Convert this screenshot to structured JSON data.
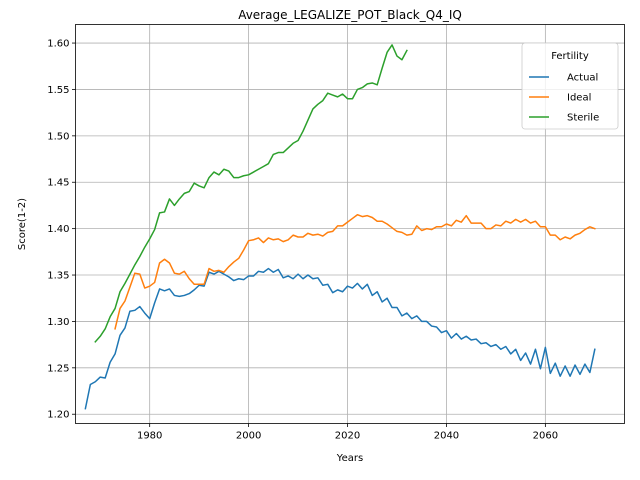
{
  "chart_data": {
    "type": "line",
    "title": "Average_LEGALIZE_POT_Black_Q4_IQ",
    "xlabel": "Years",
    "ylabel": "Score(1-2)",
    "xlim": [
      1965,
      2076
    ],
    "ylim": [
      1.19,
      1.62
    ],
    "xticks": [
      1980,
      2000,
      2020,
      2040,
      2060
    ],
    "yticks": [
      1.2,
      1.25,
      1.3,
      1.35,
      1.4,
      1.45,
      1.5,
      1.55,
      1.6
    ],
    "xtick_labels": [
      "1980",
      "2000",
      "2020",
      "2040",
      "2060"
    ],
    "ytick_labels": [
      "1.20",
      "1.25",
      "1.30",
      "1.35",
      "1.40",
      "1.45",
      "1.50",
      "1.55",
      "1.60"
    ],
    "grid": true,
    "legend": {
      "title": "Fertility",
      "position": "top-right"
    },
    "series": [
      {
        "name": "Actual",
        "color": "#1f77b4",
        "x": [
          1967,
          1968,
          1969,
          1970,
          1971,
          1972,
          1973,
          1974,
          1975,
          1976,
          1977,
          1978,
          1979,
          1980,
          1981,
          1982,
          1983,
          1984,
          1985,
          1986,
          1987,
          1988,
          1989,
          1990,
          1991,
          1992,
          1993,
          1994,
          1995,
          1996,
          1997,
          1998,
          1999,
          2000,
          2001,
          2002,
          2003,
          2004,
          2005,
          2006,
          2007,
          2008,
          2009,
          2010,
          2011,
          2012,
          2013,
          2014,
          2015,
          2016,
          2017,
          2018,
          2019,
          2020,
          2021,
          2022,
          2023,
          2024,
          2025,
          2026,
          2027,
          2028,
          2029,
          2030,
          2031,
          2032,
          2033,
          2034,
          2035,
          2036,
          2037,
          2038,
          2039,
          2040,
          2041,
          2042,
          2043,
          2044,
          2045,
          2046,
          2047,
          2048,
          2049,
          2050,
          2051,
          2052,
          2053,
          2054,
          2055,
          2056,
          2057,
          2058,
          2059,
          2060,
          2061,
          2062,
          2063,
          2064,
          2065,
          2066,
          2067,
          2068,
          2069,
          2070
        ],
        "values": [
          1.206,
          1.232,
          1.235,
          1.24,
          1.239,
          1.256,
          1.265,
          1.285,
          1.293,
          1.311,
          1.312,
          1.316,
          1.309,
          1.303,
          1.32,
          1.335,
          1.333,
          1.335,
          1.328,
          1.327,
          1.328,
          1.33,
          1.334,
          1.339,
          1.338,
          1.353,
          1.351,
          1.354,
          1.351,
          1.348,
          1.344,
          1.346,
          1.345,
          1.349,
          1.349,
          1.354,
          1.353,
          1.357,
          1.353,
          1.356,
          1.347,
          1.349,
          1.346,
          1.351,
          1.346,
          1.35,
          1.346,
          1.347,
          1.339,
          1.34,
          1.331,
          1.334,
          1.332,
          1.338,
          1.336,
          1.341,
          1.335,
          1.34,
          1.328,
          1.332,
          1.321,
          1.325,
          1.315,
          1.315,
          1.306,
          1.309,
          1.303,
          1.306,
          1.3,
          1.3,
          1.295,
          1.294,
          1.288,
          1.29,
          1.282,
          1.287,
          1.281,
          1.284,
          1.28,
          1.281,
          1.276,
          1.277,
          1.273,
          1.275,
          1.27,
          1.273,
          1.265,
          1.27,
          1.258,
          1.266,
          1.254,
          1.27,
          1.249,
          1.272,
          1.244,
          1.255,
          1.241,
          1.252,
          1.241,
          1.253,
          1.243,
          1.254,
          1.245,
          1.27
        ]
      },
      {
        "name": "Ideal",
        "color": "#ff7f0e",
        "x": [
          1973,
          1974,
          1975,
          1976,
          1977,
          1978,
          1979,
          1980,
          1981,
          1982,
          1983,
          1984,
          1985,
          1986,
          1987,
          1988,
          1989,
          1990,
          1991,
          1992,
          1993,
          1994,
          1995,
          1996,
          1997,
          1998,
          1999,
          2000,
          2001,
          2002,
          2003,
          2004,
          2005,
          2006,
          2007,
          2008,
          2009,
          2010,
          2011,
          2012,
          2013,
          2014,
          2015,
          2016,
          2017,
          2018,
          2019,
          2020,
          2021,
          2022,
          2023,
          2024,
          2025,
          2026,
          2027,
          2028,
          2029,
          2030,
          2031,
          2032,
          2033,
          2034,
          2035,
          2036,
          2037,
          2038,
          2039,
          2040,
          2041,
          2042,
          2043,
          2044,
          2045,
          2046,
          2047,
          2048,
          2049,
          2050,
          2051,
          2052,
          2053,
          2054,
          2055,
          2056,
          2057,
          2058,
          2059,
          2060,
          2061,
          2062,
          2063,
          2064,
          2065,
          2066,
          2067,
          2068,
          2069,
          2070
        ],
        "values": [
          1.292,
          1.314,
          1.322,
          1.337,
          1.352,
          1.351,
          1.336,
          1.338,
          1.342,
          1.363,
          1.367,
          1.363,
          1.352,
          1.351,
          1.354,
          1.346,
          1.34,
          1.34,
          1.34,
          1.357,
          1.354,
          1.355,
          1.353,
          1.359,
          1.364,
          1.368,
          1.377,
          1.387,
          1.388,
          1.39,
          1.385,
          1.39,
          1.388,
          1.389,
          1.386,
          1.388,
          1.393,
          1.391,
          1.391,
          1.395,
          1.393,
          1.394,
          1.392,
          1.396,
          1.397,
          1.403,
          1.403,
          1.407,
          1.411,
          1.415,
          1.413,
          1.414,
          1.412,
          1.408,
          1.408,
          1.405,
          1.401,
          1.397,
          1.396,
          1.393,
          1.394,
          1.403,
          1.398,
          1.4,
          1.399,
          1.402,
          1.402,
          1.405,
          1.403,
          1.409,
          1.407,
          1.414,
          1.406,
          1.406,
          1.406,
          1.4,
          1.4,
          1.404,
          1.403,
          1.408,
          1.406,
          1.41,
          1.407,
          1.41,
          1.406,
          1.408,
          1.402,
          1.402,
          1.393,
          1.393,
          1.388,
          1.391,
          1.389,
          1.393,
          1.395,
          1.399,
          1.402,
          1.4
        ]
      },
      {
        "name": "Sterile",
        "color": "#2ca02c",
        "x": [
          1969,
          1970,
          1971,
          1972,
          1973,
          1974,
          1975,
          1976,
          1977,
          1978,
          1979,
          1980,
          1981,
          1982,
          1983,
          1984,
          1985,
          1986,
          1987,
          1988,
          1989,
          1990,
          1991,
          1992,
          1993,
          1994,
          1995,
          1996,
          1997,
          1998,
          1999,
          2000,
          2001,
          2002,
          2003,
          2004,
          2005,
          2006,
          2007,
          2008,
          2009,
          2010,
          2011,
          2012,
          2013,
          2014,
          2015,
          2016,
          2017,
          2018,
          2019,
          2020,
          2021,
          2022,
          2023,
          2024,
          2025,
          2026,
          2027,
          2028,
          2029,
          2030,
          2031,
          2032
        ],
        "values": [
          1.278,
          1.284,
          1.292,
          1.305,
          1.314,
          1.332,
          1.341,
          1.351,
          1.361,
          1.37,
          1.38,
          1.389,
          1.399,
          1.417,
          1.418,
          1.432,
          1.425,
          1.432,
          1.438,
          1.44,
          1.449,
          1.446,
          1.444,
          1.455,
          1.461,
          1.458,
          1.464,
          1.462,
          1.455,
          1.455,
          1.457,
          1.458,
          1.461,
          1.464,
          1.467,
          1.47,
          1.48,
          1.482,
          1.482,
          1.487,
          1.492,
          1.495,
          1.505,
          1.517,
          1.529,
          1.534,
          1.538,
          1.546,
          1.544,
          1.542,
          1.545,
          1.54,
          1.54,
          1.55,
          1.552,
          1.556,
          1.557,
          1.555,
          1.573,
          1.59,
          1.598,
          1.586,
          1.582,
          1.592
        ]
      }
    ]
  }
}
